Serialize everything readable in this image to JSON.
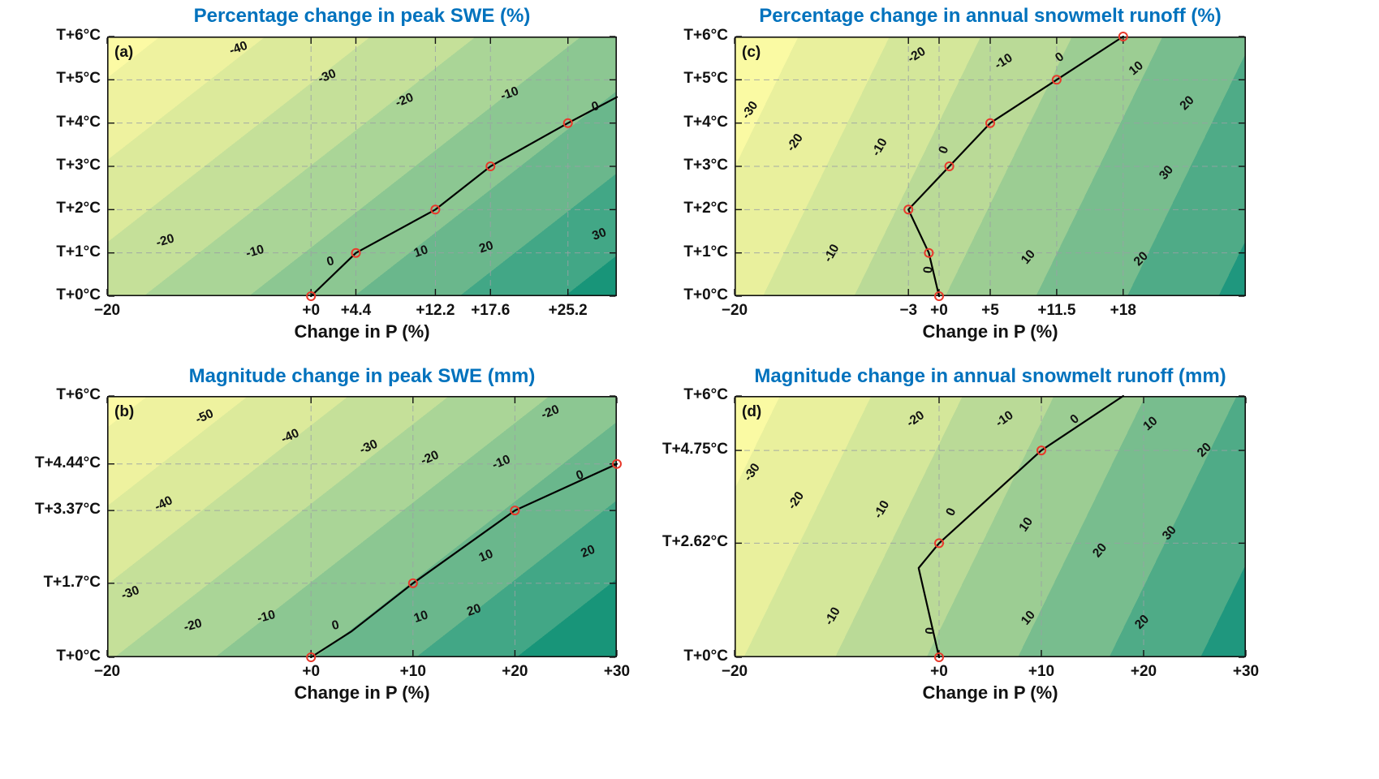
{
  "styles": {
    "title_color": "#0072BD",
    "axis_color": "#111111",
    "grid_color": "#9aa0a5",
    "zero_line_color": "#000000",
    "marker_color": "#e8392b",
    "contour_label_color": "#111111",
    "background": "#ffffff"
  },
  "chart_data": [
    {
      "id": "a",
      "type": "contour",
      "tag": "(a)",
      "title": "Percentage change in peak SWE (%)",
      "xlabel": "Change in P (%)",
      "x_range": [
        -20,
        30
      ],
      "y_range": [
        0,
        6
      ],
      "x_ticks": [
        {
          "v": -20,
          "t": "−20"
        },
        {
          "v": 0,
          "t": "+0"
        },
        {
          "v": 4.4,
          "t": "+4.4"
        },
        {
          "v": 12.2,
          "t": "+12.2"
        },
        {
          "v": 17.6,
          "t": "+17.6"
        },
        {
          "v": 25.2,
          "t": "+25.2"
        }
      ],
      "y_ticks": [
        {
          "v": 0,
          "t": "T+0°C"
        },
        {
          "v": 1,
          "t": "T+1°C"
        },
        {
          "v": 2,
          "t": "T+2°C"
        },
        {
          "v": 3,
          "t": "T+3°C"
        },
        {
          "v": 4,
          "t": "T+4°C"
        },
        {
          "v": 5,
          "t": "T+5°C"
        },
        {
          "v": 6,
          "t": "T+6°C"
        }
      ],
      "band_angle_deg": 142,
      "band_span": [
        -45,
        35
      ],
      "band_boundaries": [
        -40,
        -30,
        -20,
        -10,
        0,
        10,
        20,
        30
      ],
      "band_colors": [
        "#fcfaa4",
        "#eef29f",
        "#dcea9b",
        "#c5e099",
        "#aad597",
        "#8cc792",
        "#6ab78c",
        "#42a786",
        "#189579"
      ],
      "zero_line": [
        [
          0,
          0
        ],
        [
          4.4,
          1
        ],
        [
          12.2,
          2
        ],
        [
          17.6,
          3
        ],
        [
          25.2,
          4
        ],
        [
          30,
          4.6
        ]
      ],
      "markers": [
        [
          0,
          0
        ],
        [
          4.4,
          1
        ],
        [
          12.2,
          2
        ],
        [
          17.6,
          3
        ],
        [
          25.2,
          4
        ]
      ],
      "contour_labels": [
        {
          "t": "-40",
          "x": -7,
          "y": 5.65,
          "r": -20
        },
        {
          "t": "-30",
          "x": 1.7,
          "y": 5.0,
          "r": -22
        },
        {
          "t": "-20",
          "x": 9.3,
          "y": 4.45,
          "r": -22
        },
        {
          "t": "-10",
          "x": 19.6,
          "y": 4.6,
          "r": -20
        },
        {
          "t": "0",
          "x": 28.0,
          "y": 4.3,
          "r": -18
        },
        {
          "t": "-20",
          "x": -14.2,
          "y": 1.2,
          "r": -16
        },
        {
          "t": "-10",
          "x": -5.4,
          "y": 0.95,
          "r": -16
        },
        {
          "t": "0",
          "x": 2.0,
          "y": 0.72,
          "r": -15
        },
        {
          "t": "10",
          "x": 10.9,
          "y": 0.95,
          "r": -18
        },
        {
          "t": "20",
          "x": 17.3,
          "y": 1.05,
          "r": -18
        },
        {
          "t": "30",
          "x": 28.4,
          "y": 1.35,
          "r": -20
        }
      ]
    },
    {
      "id": "b",
      "type": "contour",
      "tag": "(b)",
      "title": "Magnitude change in peak SWE (mm)",
      "xlabel": "Change in P (%)",
      "x_range": [
        -20,
        30
      ],
      "y_range": [
        0,
        6
      ],
      "x_ticks": [
        {
          "v": -20,
          "t": "−20"
        },
        {
          "v": 0,
          "t": "+0"
        },
        {
          "v": 10,
          "t": "+10"
        },
        {
          "v": 20,
          "t": "+20"
        },
        {
          "v": 30,
          "t": "+30"
        }
      ],
      "y_ticks": [
        {
          "v": 0,
          "t": "T+0°C"
        },
        {
          "v": 1.7,
          "t": "T+1.7°C"
        },
        {
          "v": 3.37,
          "t": "T+3.37°C"
        },
        {
          "v": 4.44,
          "t": "T+4.44°C"
        },
        {
          "v": 6,
          "t": "T+6°C"
        }
      ],
      "band_angle_deg": 142,
      "band_span": [
        -54,
        30
      ],
      "band_boundaries": [
        -50,
        -40,
        -30,
        -20,
        -10,
        0,
        10,
        20
      ],
      "band_colors": [
        "#fcfaa4",
        "#eef29f",
        "#dcea9b",
        "#c5e099",
        "#aad597",
        "#8cc792",
        "#6ab78c",
        "#42a786",
        "#189579"
      ],
      "zero_line": [
        [
          0,
          0
        ],
        [
          4,
          0.6
        ],
        [
          10,
          1.7
        ],
        [
          20,
          3.37
        ],
        [
          30,
          4.44
        ]
      ],
      "markers": [
        [
          0,
          0
        ],
        [
          10,
          1.7
        ],
        [
          20,
          3.37
        ],
        [
          30,
          4.44
        ]
      ],
      "contour_labels": [
        {
          "t": "-50",
          "x": -10.3,
          "y": 5.45,
          "r": -24
        },
        {
          "t": "-40",
          "x": -1.9,
          "y": 5.0,
          "r": -24
        },
        {
          "t": "-30",
          "x": 5.8,
          "y": 4.75,
          "r": -24
        },
        {
          "t": "-20",
          "x": 11.8,
          "y": 4.5,
          "r": -24
        },
        {
          "t": "-10",
          "x": 18.8,
          "y": 4.4,
          "r": -22
        },
        {
          "t": "-20",
          "x": 23.6,
          "y": 5.55,
          "r": -22
        },
        {
          "t": "0",
          "x": 26.5,
          "y": 4.1,
          "r": -20
        },
        {
          "t": "-40",
          "x": -14.3,
          "y": 3.45,
          "r": -26
        },
        {
          "t": "-30",
          "x": -17.6,
          "y": 1.4,
          "r": -20
        },
        {
          "t": "-20",
          "x": -11.5,
          "y": 0.65,
          "r": -15
        },
        {
          "t": "-10",
          "x": -4.3,
          "y": 0.85,
          "r": -15
        },
        {
          "t": "0",
          "x": 2.5,
          "y": 0.65,
          "r": -15
        },
        {
          "t": "10",
          "x": 10.9,
          "y": 0.85,
          "r": -18
        },
        {
          "t": "20",
          "x": 16.1,
          "y": 1.0,
          "r": -18
        },
        {
          "t": "10",
          "x": 17.3,
          "y": 2.25,
          "r": -22
        },
        {
          "t": "20",
          "x": 27.3,
          "y": 2.35,
          "r": -22
        }
      ]
    },
    {
      "id": "c",
      "type": "contour",
      "tag": "(c)",
      "title": "Percentage change in annual snowmelt runoff (%)",
      "xlabel": "Change in P (%)",
      "x_range": [
        -20,
        30
      ],
      "y_range": [
        0,
        6
      ],
      "x_ticks": [
        {
          "v": -20,
          "t": "−20"
        },
        {
          "v": -3,
          "t": "−3"
        },
        {
          "v": 0,
          "t": "+0"
        },
        {
          "v": 5,
          "t": "+5"
        },
        {
          "v": 11.5,
          "t": "+11.5"
        },
        {
          "v": 18,
          "t": "+18"
        }
      ],
      "y_ticks": [
        {
          "v": 0,
          "t": "T+0°C"
        },
        {
          "v": 1,
          "t": "T+1°C"
        },
        {
          "v": 2,
          "t": "T+2°C"
        },
        {
          "v": 3,
          "t": "T+3°C"
        },
        {
          "v": 4,
          "t": "T+4°C"
        },
        {
          "v": 5,
          "t": "T+5°C"
        },
        {
          "v": 6,
          "t": "T+6°C"
        }
      ],
      "band_angle_deg": 116,
      "band_span": [
        -37,
        33
      ],
      "band_boundaries": [
        -30,
        -20,
        -10,
        0,
        10,
        20,
        30
      ],
      "band_colors": [
        "#fafaa3",
        "#e9f09d",
        "#d4e79a",
        "#bada97",
        "#9ccd93",
        "#78bd8e",
        "#4fab87",
        "#1f977e"
      ],
      "zero_line": [
        [
          0,
          0
        ],
        [
          -1,
          1
        ],
        [
          -3,
          2
        ],
        [
          1,
          3
        ],
        [
          5,
          4
        ],
        [
          11.5,
          5
        ],
        [
          18,
          6
        ]
      ],
      "markers": [
        [
          0,
          0
        ],
        [
          -1,
          1
        ],
        [
          -3,
          2
        ],
        [
          1,
          3
        ],
        [
          5,
          4
        ],
        [
          11.5,
          5
        ],
        [
          18,
          6
        ]
      ],
      "contour_labels": [
        {
          "t": "-30",
          "x": -18.2,
          "y": 4.25,
          "r": -55
        },
        {
          "t": "-20",
          "x": -13.8,
          "y": 3.5,
          "r": -55
        },
        {
          "t": "-10",
          "x": -5.5,
          "y": 3.4,
          "r": -60
        },
        {
          "t": "-20",
          "x": -2.0,
          "y": 5.5,
          "r": -32
        },
        {
          "t": "-10",
          "x": 6.5,
          "y": 5.35,
          "r": -32
        },
        {
          "t": "0",
          "x": 12.0,
          "y": 5.45,
          "r": -36
        },
        {
          "t": "10",
          "x": 19.5,
          "y": 5.2,
          "r": -40
        },
        {
          "t": "20",
          "x": 24.5,
          "y": 4.4,
          "r": -45
        },
        {
          "t": "30",
          "x": 22.5,
          "y": 2.8,
          "r": -50
        },
        {
          "t": "20",
          "x": 20.0,
          "y": 0.8,
          "r": -45
        },
        {
          "t": "10",
          "x": 9.0,
          "y": 0.85,
          "r": -50
        },
        {
          "t": "-10",
          "x": -10.2,
          "y": 0.95,
          "r": -60
        },
        {
          "t": "0",
          "x": -0.7,
          "y": 0.6,
          "r": -85
        },
        {
          "t": "0",
          "x": 0.8,
          "y": 3.35,
          "r": -70
        }
      ]
    },
    {
      "id": "d",
      "type": "contour",
      "tag": "(d)",
      "title": "Magnitude change in annual snowmelt runoff (mm)",
      "xlabel": "Change in P (%)",
      "x_range": [
        -20,
        30
      ],
      "y_range": [
        0,
        6
      ],
      "x_ticks": [
        {
          "v": -20,
          "t": "−20"
        },
        {
          "v": 0,
          "t": "+0"
        },
        {
          "v": 10,
          "t": "+10"
        },
        {
          "v": 20,
          "t": "+20"
        },
        {
          "v": 30,
          "t": "+30"
        }
      ],
      "y_ticks": [
        {
          "v": 0,
          "t": "T+0°C"
        },
        {
          "v": 2.62,
          "t": "T+2.62°C"
        },
        {
          "v": 4.75,
          "t": "T+4.75°C"
        },
        {
          "v": 6,
          "t": "T+6°C"
        }
      ],
      "band_angle_deg": 116,
      "band_span": [
        -35,
        35
      ],
      "band_boundaries": [
        -30,
        -20,
        -10,
        0,
        10,
        20,
        30
      ],
      "band_colors": [
        "#fafaa3",
        "#e9f09d",
        "#d4e79a",
        "#bada97",
        "#9ccd93",
        "#78bd8e",
        "#4fab87",
        "#1f977e"
      ],
      "zero_line": [
        [
          0,
          0
        ],
        [
          -2,
          2.05
        ],
        [
          0,
          2.62
        ],
        [
          10,
          4.75
        ],
        [
          18,
          6
        ]
      ],
      "markers": [
        [
          0,
          0
        ],
        [
          0,
          2.62
        ],
        [
          10,
          4.75
        ]
      ],
      "contour_labels": [
        {
          "t": "-30",
          "x": -18.0,
          "y": 4.2,
          "r": -55
        },
        {
          "t": "-20",
          "x": -13.7,
          "y": 3.55,
          "r": -55
        },
        {
          "t": "-10",
          "x": -5.3,
          "y": 3.35,
          "r": -60
        },
        {
          "t": "-20",
          "x": -2.1,
          "y": 5.4,
          "r": -35
        },
        {
          "t": "-10",
          "x": 6.6,
          "y": 5.4,
          "r": -35
        },
        {
          "t": "0",
          "x": 13.5,
          "y": 5.4,
          "r": -40
        },
        {
          "t": "10",
          "x": 20.9,
          "y": 5.3,
          "r": -40
        },
        {
          "t": "20",
          "x": 26.2,
          "y": 4.7,
          "r": -45
        },
        {
          "t": "0",
          "x": 1.5,
          "y": 3.3,
          "r": -65
        },
        {
          "t": "10",
          "x": 8.8,
          "y": 3.0,
          "r": -55
        },
        {
          "t": "20",
          "x": 16.0,
          "y": 2.4,
          "r": -50
        },
        {
          "t": "30",
          "x": 22.8,
          "y": 2.8,
          "r": -50
        },
        {
          "t": "-10",
          "x": -10.1,
          "y": 0.9,
          "r": -60
        },
        {
          "t": "0",
          "x": -0.5,
          "y": 0.6,
          "r": -85
        },
        {
          "t": "10",
          "x": 9.0,
          "y": 0.85,
          "r": -50
        },
        {
          "t": "20",
          "x": 20.1,
          "y": 0.75,
          "r": -45
        }
      ]
    }
  ]
}
